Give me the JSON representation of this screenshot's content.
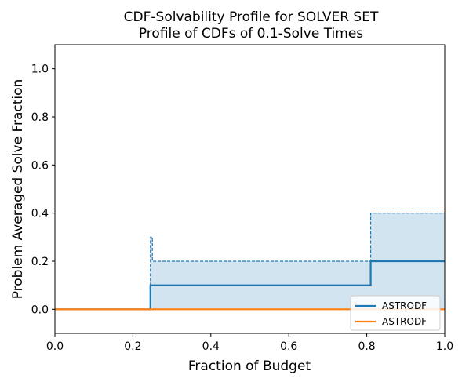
{
  "chart_data": {
    "type": "line",
    "title": "CDF-Solvability Profile for SOLVER SET",
    "subtitle": "Profile of CDFs of 0.1-Solve Times",
    "xlabel": "Fraction of Budget",
    "ylabel": "Problem Averaged Solve Fraction",
    "xlim": [
      0.0,
      1.0
    ],
    "ylim": [
      -0.1,
      1.1
    ],
    "xticks": [
      "0.0",
      "0.2",
      "0.4",
      "0.6",
      "0.8",
      "1.0"
    ],
    "yticks": [
      "0.0",
      "0.2",
      "0.4",
      "0.6",
      "0.8",
      "1.0"
    ],
    "legend_position": "lower-right",
    "grid": false,
    "series": [
      {
        "name": "ASTRODF",
        "color": "#1f77b4",
        "style": "solid-step",
        "x": [
          0.0,
          0.245,
          0.245,
          0.81,
          0.81,
          1.0
        ],
        "y": [
          0.0,
          0.0,
          0.1,
          0.1,
          0.2,
          0.2
        ]
      },
      {
        "name": "ASTRODF",
        "color": "#ff7f0e",
        "style": "solid",
        "x": [
          0.0,
          1.0
        ],
        "y": [
          0.0,
          0.0
        ]
      }
    ],
    "band": {
      "color": "#1f77b4",
      "opacity": 0.2,
      "upper": {
        "x": [
          0.245,
          0.245,
          0.25,
          0.25,
          0.81,
          0.81,
          1.0
        ],
        "y": [
          0.0,
          0.3,
          0.3,
          0.2,
          0.2,
          0.4,
          0.4
        ]
      },
      "lower": {
        "x": [
          0.245,
          1.0
        ],
        "y": [
          0.0,
          0.0
        ]
      }
    }
  }
}
